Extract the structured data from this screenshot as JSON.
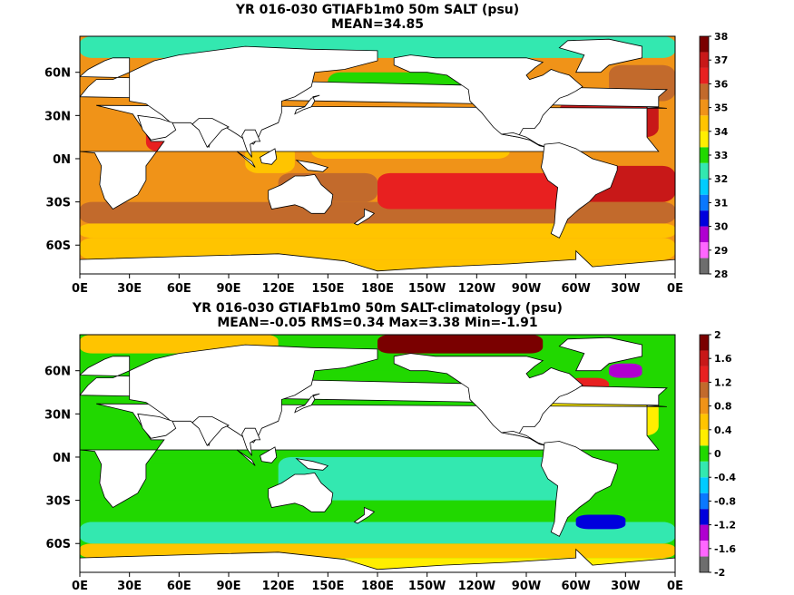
{
  "chart_data": [
    {
      "type": "heatmap",
      "title": "YR 016-030 GTIAFb1m0 50m SALT (psu)",
      "subtitle": "MEAN=34.85",
      "x_tick_labels": [
        "0E",
        "30E",
        "60E",
        "90E",
        "120E",
        "150E",
        "180E",
        "150W",
        "120W",
        "90W",
        "60W",
        "30W",
        "0E"
      ],
      "x_ticks_deg": [
        0,
        30,
        60,
        90,
        120,
        150,
        180,
        210,
        240,
        270,
        300,
        330,
        360
      ],
      "y_tick_labels": [
        "60N",
        "30N",
        "0N",
        "30S",
        "60S"
      ],
      "y_ticks_deg": [
        60,
        30,
        0,
        -30,
        -60
      ],
      "xlim": [
        0,
        360
      ],
      "ylim": [
        -80,
        85
      ],
      "colorbar_levels": [
        28,
        29,
        30,
        31,
        32,
        33,
        34,
        35,
        36,
        37,
        38
      ],
      "colorbar_labels": [
        "38",
        "37",
        "36",
        "35",
        "34",
        "33",
        "32",
        "31",
        "30",
        "29",
        "28"
      ],
      "colorbar_colors": [
        "#6e6e6e",
        "#ff66ff",
        "#b000d0",
        "#0000dd",
        "#0a78ff",
        "#00ccff",
        "#33e8b0",
        "#21d800",
        "#ffee00",
        "#ffc400",
        "#f09318",
        "#c26a2c",
        "#e82020",
        "#c81818",
        "#7a0000"
      ],
      "regions": [
        {
          "lon": [
            0,
            360
          ],
          "lat": [
            -80,
            -70
          ],
          "value": 34.0
        },
        {
          "lon": [
            0,
            360
          ],
          "lat": [
            -70,
            -55
          ],
          "value": 34.0
        },
        {
          "lon": [
            0,
            360
          ],
          "lat": [
            -55,
            -45
          ],
          "value": 34.3
        },
        {
          "lon": [
            0,
            360
          ],
          "lat": [
            -45,
            -30
          ],
          "value": 35.4
        },
        {
          "lon": [
            20,
            120
          ],
          "lat": [
            -30,
            0
          ],
          "value": 35.0
        },
        {
          "lon": [
            40,
            75
          ],
          "lat": [
            5,
            25
          ],
          "value": 36.2
        },
        {
          "lon": [
            80,
            100
          ],
          "lat": [
            5,
            20
          ],
          "value": 33.8
        },
        {
          "lon": [
            100,
            130
          ],
          "lat": [
            -10,
            10
          ],
          "value": 34.0
        },
        {
          "lon": [
            120,
            180
          ],
          "lat": [
            -30,
            -10
          ],
          "value": 35.5
        },
        {
          "lon": [
            180,
            300
          ],
          "lat": [
            -35,
            -10
          ],
          "value": 36.0
        },
        {
          "lon": [
            200,
            260
          ],
          "lat": [
            -25,
            -15
          ],
          "value": 36.6
        },
        {
          "lon": [
            140,
            260
          ],
          "lat": [
            0,
            15
          ],
          "value": 34.6
        },
        {
          "lon": [
            130,
            240
          ],
          "lat": [
            15,
            35
          ],
          "value": 35.0
        },
        {
          "lon": [
            150,
            240
          ],
          "lat": [
            40,
            60
          ],
          "value": 33.0
        },
        {
          "lon": [
            290,
            350
          ],
          "lat": [
            15,
            40
          ],
          "value": 37.0
        },
        {
          "lon": [
            300,
            360
          ],
          "lat": [
            -30,
            -5
          ],
          "value": 36.8
        },
        {
          "lon": [
            320,
            360
          ],
          "lat": [
            40,
            65
          ],
          "value": 35.4
        },
        {
          "lon": [
            0,
            360
          ],
          "lat": [
            70,
            85
          ],
          "value": 32.5
        }
      ]
    },
    {
      "type": "heatmap",
      "title": "YR 016-030 GTIAFb1m0 50m SALT-climatology (psu)",
      "subtitle": "MEAN=-0.05   RMS=0.34   Max=3.38   Min=-1.91",
      "x_tick_labels": [
        "0E",
        "30E",
        "60E",
        "90E",
        "120E",
        "150E",
        "180E",
        "150W",
        "120W",
        "90W",
        "60W",
        "30W",
        "0E"
      ],
      "x_ticks_deg": [
        0,
        30,
        60,
        90,
        120,
        150,
        180,
        210,
        240,
        270,
        300,
        330,
        360
      ],
      "y_tick_labels": [
        "60N",
        "30N",
        "0N",
        "30S",
        "60S"
      ],
      "y_ticks_deg": [
        60,
        30,
        0,
        -30,
        -60
      ],
      "xlim": [
        0,
        360
      ],
      "ylim": [
        -80,
        85
      ],
      "colorbar_levels": [
        -2,
        -1.6,
        -1.2,
        -0.8,
        -0.4,
        0,
        0.4,
        0.8,
        1.2,
        1.6,
        2
      ],
      "colorbar_labels": [
        "2",
        "1.6",
        "1.2",
        "0.8",
        "0.4",
        "0",
        "-0.4",
        "-0.8",
        "-1.2",
        "-1.6",
        "-2"
      ],
      "colorbar_colors": [
        "#6e6e6e",
        "#ff66ff",
        "#b000d0",
        "#0000dd",
        "#0a78ff",
        "#00ccff",
        "#33e8b0",
        "#21d800",
        "#ffee00",
        "#ffc400",
        "#f09318",
        "#c26a2c",
        "#e82020",
        "#c81818",
        "#7a0000"
      ],
      "regions": [
        {
          "lon": [
            0,
            360
          ],
          "lat": [
            -80,
            -70
          ],
          "value": 0.2
        },
        {
          "lon": [
            0,
            360
          ],
          "lat": [
            -70,
            -60
          ],
          "value": 0.4
        },
        {
          "lon": [
            0,
            360
          ],
          "lat": [
            -60,
            -45
          ],
          "value": -0.3
        },
        {
          "lon": [
            0,
            360
          ],
          "lat": [
            -45,
            -30
          ],
          "value": -0.1
        },
        {
          "lon": [
            20,
            120
          ],
          "lat": [
            -30,
            -5
          ],
          "value": 0.05
        },
        {
          "lon": [
            120,
            300
          ],
          "lat": [
            -30,
            0
          ],
          "value": -0.15
        },
        {
          "lon": [
            60,
            120
          ],
          "lat": [
            0,
            25
          ],
          "value": 0.1
        },
        {
          "lon": [
            130,
            250
          ],
          "lat": [
            5,
            40
          ],
          "value": -0.1
        },
        {
          "lon": [
            150,
            240
          ],
          "lat": [
            40,
            60
          ],
          "value": 0.0
        },
        {
          "lon": [
            280,
            350
          ],
          "lat": [
            15,
            40
          ],
          "value": 0.2
        },
        {
          "lon": [
            295,
            320
          ],
          "lat": [
            42,
            55
          ],
          "value": 1.4
        },
        {
          "lon": [
            320,
            340
          ],
          "lat": [
            55,
            65
          ],
          "value": -1.4
        },
        {
          "lon": [
            300,
            330
          ],
          "lat": [
            -50,
            -40
          ],
          "value": -1.0
        },
        {
          "lon": [
            180,
            280
          ],
          "lat": [
            72,
            85
          ],
          "value": 1.8
        },
        {
          "lon": [
            0,
            120
          ],
          "lat": [
            72,
            85
          ],
          "value": 0.6
        }
      ]
    }
  ]
}
